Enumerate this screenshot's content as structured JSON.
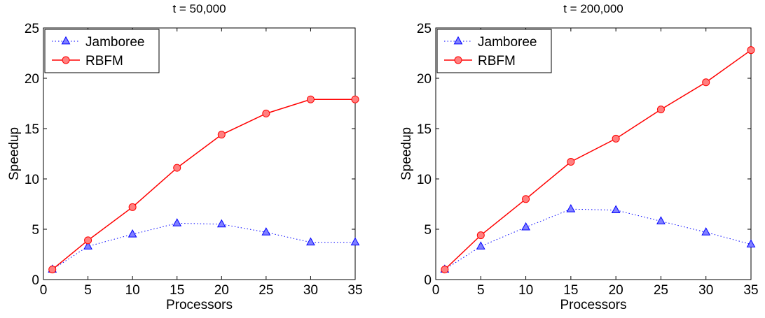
{
  "chart_data": [
    {
      "type": "line",
      "title": "t = 50,000",
      "xlabel": "Processors",
      "ylabel": "Speedup",
      "xlim": [
        0,
        35
      ],
      "ylim": [
        0,
        25
      ],
      "xticks": [
        0,
        5,
        10,
        15,
        20,
        25,
        30,
        35
      ],
      "yticks": [
        0,
        5,
        10,
        15,
        20,
        25
      ],
      "grid": false,
      "legend": "top-left",
      "x": [
        1,
        5,
        10,
        15,
        20,
        25,
        30,
        35
      ],
      "series": [
        {
          "name": "Jamboree",
          "values": [
            1.0,
            3.3,
            4.5,
            5.6,
            5.5,
            4.7,
            3.7,
            3.7
          ],
          "color": "#0000ff",
          "marker": "triangle",
          "marker_fill": "#8080ff",
          "line_style": "dotted"
        },
        {
          "name": "RBFM",
          "values": [
            1.0,
            3.9,
            7.2,
            11.1,
            14.4,
            16.5,
            17.9,
            17.9
          ],
          "color": "#ff0000",
          "marker": "circle",
          "marker_fill": "#ff8080",
          "line_style": "solid"
        }
      ]
    },
    {
      "type": "line",
      "title": "t = 200,000",
      "xlabel": "Processors",
      "ylabel": "Speedup",
      "xlim": [
        0,
        35
      ],
      "ylim": [
        0,
        25
      ],
      "xticks": [
        0,
        5,
        10,
        15,
        20,
        25,
        30,
        35
      ],
      "yticks": [
        0,
        5,
        10,
        15,
        20,
        25
      ],
      "grid": false,
      "legend": "top-left",
      "x": [
        1,
        5,
        10,
        15,
        20,
        25,
        30,
        35
      ],
      "series": [
        {
          "name": "Jamboree",
          "values": [
            1.0,
            3.3,
            5.2,
            7.0,
            6.9,
            5.8,
            4.7,
            3.5
          ],
          "color": "#0000ff",
          "marker": "triangle",
          "marker_fill": "#8080ff",
          "line_style": "dotted"
        },
        {
          "name": "RBFM",
          "values": [
            1.0,
            4.4,
            8.0,
            11.7,
            14.0,
            16.9,
            19.6,
            22.8
          ],
          "color": "#ff0000",
          "marker": "circle",
          "marker_fill": "#ff8080",
          "line_style": "solid"
        }
      ]
    }
  ]
}
